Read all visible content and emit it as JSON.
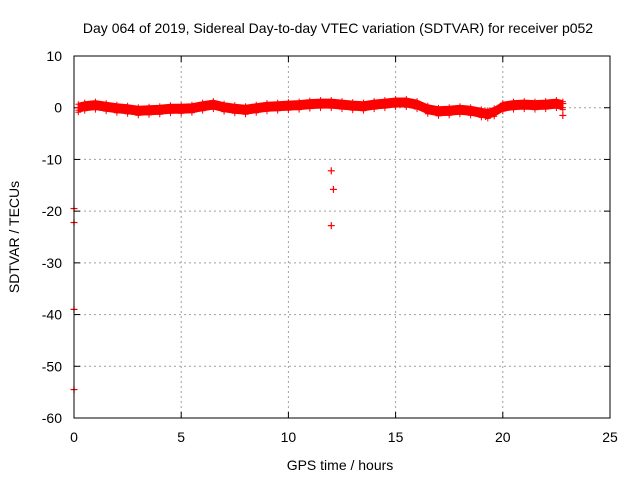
{
  "chart_data": {
    "type": "scatter",
    "title": "Day 064 of 2019, Sidereal Day-to-day VTEC variation (SDTVAR) for receiver p052",
    "xlabel": "GPS time / hours",
    "ylabel": "SDTVAR / TECUs",
    "xlim": [
      0,
      25
    ],
    "ylim": [
      -60,
      10
    ],
    "xticks": [
      0,
      5,
      10,
      15,
      20,
      25
    ],
    "yticks": [
      10,
      0,
      -10,
      -20,
      -30,
      -40,
      -50,
      -60
    ],
    "grid": true,
    "marker": "plus",
    "color": "#ff0000",
    "series": [
      {
        "name": "SDTVAR",
        "band": [
          [
            0.2,
            0.0
          ],
          [
            0.5,
            0.3
          ],
          [
            1.0,
            0.5
          ],
          [
            1.5,
            0.2
          ],
          [
            2.0,
            -0.1
          ],
          [
            2.5,
            -0.3
          ],
          [
            3.0,
            -0.6
          ],
          [
            3.5,
            -0.5
          ],
          [
            4.0,
            -0.4
          ],
          [
            4.5,
            -0.2
          ],
          [
            5.0,
            -0.2
          ],
          [
            5.5,
            -0.1
          ],
          [
            6.0,
            0.3
          ],
          [
            6.5,
            0.6
          ],
          [
            7.0,
            0.1
          ],
          [
            7.5,
            -0.2
          ],
          [
            8.0,
            -0.4
          ],
          [
            8.5,
            -0.1
          ],
          [
            9.0,
            0.2
          ],
          [
            9.5,
            0.3
          ],
          [
            10.0,
            0.4
          ],
          [
            10.5,
            0.5
          ],
          [
            11.0,
            0.7
          ],
          [
            11.5,
            0.8
          ],
          [
            12.0,
            0.8
          ],
          [
            12.5,
            0.6
          ],
          [
            13.0,
            0.4
          ],
          [
            13.5,
            0.3
          ],
          [
            14.0,
            0.6
          ],
          [
            14.5,
            0.8
          ],
          [
            15.0,
            1.0
          ],
          [
            15.5,
            1.0
          ],
          [
            16.0,
            0.6
          ],
          [
            16.5,
            -0.3
          ],
          [
            17.0,
            -0.7
          ],
          [
            17.5,
            -0.6
          ],
          [
            18.0,
            -0.4
          ],
          [
            18.5,
            -0.6
          ],
          [
            19.0,
            -1.0
          ],
          [
            19.3,
            -1.2
          ],
          [
            19.6,
            -0.8
          ],
          [
            20.0,
            0.2
          ],
          [
            20.5,
            0.5
          ],
          [
            21.0,
            0.6
          ],
          [
            21.5,
            0.5
          ],
          [
            22.0,
            0.6
          ],
          [
            22.5,
            0.8
          ],
          [
            22.8,
            0.5
          ]
        ],
        "outliers": [
          [
            0.0,
            -19.5
          ],
          [
            0.0,
            -22.2
          ],
          [
            0.0,
            -39.0
          ],
          [
            0.0,
            -54.5
          ],
          [
            0.2,
            0.0
          ],
          [
            12.0,
            -12.2
          ],
          [
            12.1,
            -15.8
          ],
          [
            12.0,
            -22.8
          ],
          [
            19.2,
            -1.7
          ],
          [
            22.8,
            -1.5
          ],
          [
            22.8,
            0.8
          ]
        ]
      }
    ]
  }
}
